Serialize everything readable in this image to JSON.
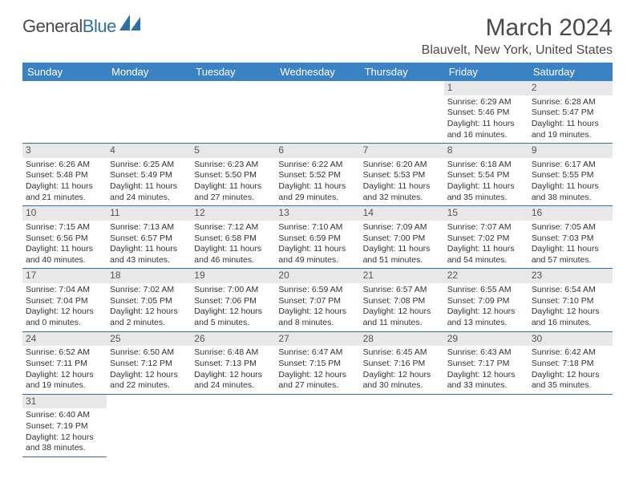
{
  "brand": {
    "part1": "General",
    "part2": "Blue"
  },
  "title": "March 2024",
  "location": "Blauvelt, New York, United States",
  "colors": {
    "header_bg": "#3b82c4",
    "header_text": "#ffffff",
    "rule": "#2f6fa8",
    "daynum_bg": "#e8e8e8",
    "text": "#333333",
    "brand_blue": "#2f6fa8",
    "brand_gray": "#4a4a4a",
    "background": "#ffffff"
  },
  "dayNames": [
    "Sunday",
    "Monday",
    "Tuesday",
    "Wednesday",
    "Thursday",
    "Friday",
    "Saturday"
  ],
  "firstWeekday": 5,
  "daysInMonth": 31,
  "days": {
    "1": {
      "sunrise": "6:29 AM",
      "sunset": "5:46 PM",
      "daylight": "11 hours and 16 minutes."
    },
    "2": {
      "sunrise": "6:28 AM",
      "sunset": "5:47 PM",
      "daylight": "11 hours and 19 minutes."
    },
    "3": {
      "sunrise": "6:26 AM",
      "sunset": "5:48 PM",
      "daylight": "11 hours and 21 minutes."
    },
    "4": {
      "sunrise": "6:25 AM",
      "sunset": "5:49 PM",
      "daylight": "11 hours and 24 minutes."
    },
    "5": {
      "sunrise": "6:23 AM",
      "sunset": "5:50 PM",
      "daylight": "11 hours and 27 minutes."
    },
    "6": {
      "sunrise": "6:22 AM",
      "sunset": "5:52 PM",
      "daylight": "11 hours and 29 minutes."
    },
    "7": {
      "sunrise": "6:20 AM",
      "sunset": "5:53 PM",
      "daylight": "11 hours and 32 minutes."
    },
    "8": {
      "sunrise": "6:18 AM",
      "sunset": "5:54 PM",
      "daylight": "11 hours and 35 minutes."
    },
    "9": {
      "sunrise": "6:17 AM",
      "sunset": "5:55 PM",
      "daylight": "11 hours and 38 minutes."
    },
    "10": {
      "sunrise": "7:15 AM",
      "sunset": "6:56 PM",
      "daylight": "11 hours and 40 minutes."
    },
    "11": {
      "sunrise": "7:13 AM",
      "sunset": "6:57 PM",
      "daylight": "11 hours and 43 minutes."
    },
    "12": {
      "sunrise": "7:12 AM",
      "sunset": "6:58 PM",
      "daylight": "11 hours and 46 minutes."
    },
    "13": {
      "sunrise": "7:10 AM",
      "sunset": "6:59 PM",
      "daylight": "11 hours and 49 minutes."
    },
    "14": {
      "sunrise": "7:09 AM",
      "sunset": "7:00 PM",
      "daylight": "11 hours and 51 minutes."
    },
    "15": {
      "sunrise": "7:07 AM",
      "sunset": "7:02 PM",
      "daylight": "11 hours and 54 minutes."
    },
    "16": {
      "sunrise": "7:05 AM",
      "sunset": "7:03 PM",
      "daylight": "11 hours and 57 minutes."
    },
    "17": {
      "sunrise": "7:04 AM",
      "sunset": "7:04 PM",
      "daylight": "12 hours and 0 minutes."
    },
    "18": {
      "sunrise": "7:02 AM",
      "sunset": "7:05 PM",
      "daylight": "12 hours and 2 minutes."
    },
    "19": {
      "sunrise": "7:00 AM",
      "sunset": "7:06 PM",
      "daylight": "12 hours and 5 minutes."
    },
    "20": {
      "sunrise": "6:59 AM",
      "sunset": "7:07 PM",
      "daylight": "12 hours and 8 minutes."
    },
    "21": {
      "sunrise": "6:57 AM",
      "sunset": "7:08 PM",
      "daylight": "12 hours and 11 minutes."
    },
    "22": {
      "sunrise": "6:55 AM",
      "sunset": "7:09 PM",
      "daylight": "12 hours and 13 minutes."
    },
    "23": {
      "sunrise": "6:54 AM",
      "sunset": "7:10 PM",
      "daylight": "12 hours and 16 minutes."
    },
    "24": {
      "sunrise": "6:52 AM",
      "sunset": "7:11 PM",
      "daylight": "12 hours and 19 minutes."
    },
    "25": {
      "sunrise": "6:50 AM",
      "sunset": "7:12 PM",
      "daylight": "12 hours and 22 minutes."
    },
    "26": {
      "sunrise": "6:48 AM",
      "sunset": "7:13 PM",
      "daylight": "12 hours and 24 minutes."
    },
    "27": {
      "sunrise": "6:47 AM",
      "sunset": "7:15 PM",
      "daylight": "12 hours and 27 minutes."
    },
    "28": {
      "sunrise": "6:45 AM",
      "sunset": "7:16 PM",
      "daylight": "12 hours and 30 minutes."
    },
    "29": {
      "sunrise": "6:43 AM",
      "sunset": "7:17 PM",
      "daylight": "12 hours and 33 minutes."
    },
    "30": {
      "sunrise": "6:42 AM",
      "sunset": "7:18 PM",
      "daylight": "12 hours and 35 minutes."
    },
    "31": {
      "sunrise": "6:40 AM",
      "sunset": "7:19 PM",
      "daylight": "12 hours and 38 minutes."
    }
  },
  "labels": {
    "sunrise": "Sunrise:",
    "sunset": "Sunset:",
    "daylight": "Daylight:"
  }
}
